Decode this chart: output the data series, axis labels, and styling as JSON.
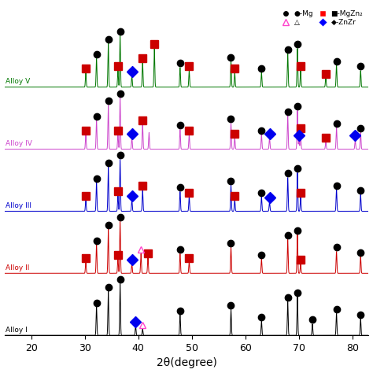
{
  "xlabel": "2θ(degree)",
  "xlim": [
    15,
    83
  ],
  "background_color": "#ffffff",
  "alloy_labels": [
    "Alloy I",
    "Alloy II",
    "Alloy III",
    "Alloy IV",
    "Alloy V"
  ],
  "alloy_colors": [
    "#000000",
    "#cc0000",
    "#0000cc",
    "#cc44cc",
    "#007700"
  ],
  "alloy_offsets": [
    0,
    120,
    240,
    360,
    480
  ],
  "peaks": {
    "alloy_I": {
      "Mg": [
        32.2,
        34.4,
        36.6,
        47.8,
        57.3,
        63.0,
        67.9,
        69.7,
        72.5,
        77.0,
        81.5
      ],
      "MgZn": [],
      "ZnZr": [
        39.5
      ],
      "MgCu": [
        40.8
      ]
    },
    "alloy_II": {
      "Mg": [
        32.2,
        34.4,
        36.6,
        47.8,
        57.3,
        63.0,
        67.9,
        69.7,
        77.0,
        81.5
      ],
      "MgZn": [
        30.2,
        36.2,
        41.8,
        49.5,
        70.3
      ],
      "ZnZr": [
        38.8
      ],
      "MgCu": [
        40.5
      ]
    },
    "alloy_III": {
      "Mg": [
        32.2,
        34.4,
        36.6,
        47.8,
        57.3,
        63.0,
        67.9,
        69.7,
        77.0,
        81.5
      ],
      "MgZn": [
        30.2,
        36.2,
        40.8,
        49.5,
        58.0,
        70.3
      ],
      "ZnZr": [
        38.8,
        64.5
      ],
      "MgCu": []
    },
    "alloy_IV": {
      "Mg": [
        32.2,
        34.4,
        36.6,
        47.8,
        57.3,
        63.0,
        67.9,
        69.7,
        77.0,
        81.5
      ],
      "MgZn": [
        30.2,
        36.2,
        40.8,
        49.5,
        58.0,
        70.3,
        75.0
      ],
      "ZnZr": [
        38.8,
        64.5,
        70.0,
        80.5
      ],
      "MgCu": []
    },
    "alloy_V": {
      "Mg": [
        32.2,
        34.4,
        36.6,
        47.8,
        57.3,
        63.0,
        67.9,
        69.7,
        77.0,
        81.5
      ],
      "MgZn": [
        30.2,
        36.2,
        40.8,
        43.0,
        49.5,
        58.0,
        70.3,
        75.0
      ],
      "ZnZr": [
        38.8
      ],
      "MgCu": []
    }
  },
  "xrd_patterns": {
    "alloy_I": {
      "peaks_pos": [
        32.2,
        34.4,
        36.6,
        39.5,
        40.8,
        47.8,
        57.3,
        63.0,
        67.9,
        69.7,
        72.5,
        77.0,
        81.5
      ],
      "peaks_h": [
        55,
        85,
        100,
        18,
        12,
        40,
        50,
        28,
        65,
        75,
        22,
        42,
        32
      ]
    },
    "alloy_II": {
      "peaks_pos": [
        30.2,
        32.2,
        34.4,
        36.2,
        36.6,
        38.8,
        40.5,
        41.8,
        47.8,
        49.5,
        57.3,
        63.0,
        67.9,
        69.7,
        70.3,
        77.0,
        81.5
      ],
      "peaks_h": [
        22,
        55,
        85,
        28,
        100,
        18,
        38,
        30,
        38,
        22,
        50,
        28,
        65,
        75,
        18,
        42,
        32
      ]
    },
    "alloy_III": {
      "peaks_pos": [
        30.2,
        32.2,
        34.4,
        36.2,
        36.6,
        38.8,
        40.8,
        47.8,
        49.5,
        57.3,
        58.0,
        63.0,
        64.5,
        67.9,
        69.7,
        70.3,
        77.0,
        81.5
      ],
      "peaks_h": [
        22,
        55,
        85,
        30,
        100,
        22,
        42,
        38,
        28,
        50,
        22,
        28,
        18,
        65,
        75,
        28,
        42,
        32
      ]
    },
    "alloy_IV": {
      "peaks_pos": [
        30.2,
        32.2,
        34.4,
        36.2,
        36.6,
        38.8,
        40.8,
        42.0,
        47.8,
        49.5,
        57.3,
        58.0,
        63.0,
        64.5,
        67.9,
        69.7,
        70.0,
        70.3,
        75.0,
        77.0,
        80.5,
        81.5
      ],
      "peaks_h": [
        28,
        55,
        85,
        28,
        100,
        22,
        48,
        32,
        38,
        28,
        50,
        22,
        28,
        22,
        65,
        75,
        18,
        32,
        14,
        42,
        18,
        32
      ]
    },
    "alloy_V": {
      "peaks_pos": [
        30.2,
        32.2,
        34.4,
        36.2,
        36.6,
        38.8,
        40.8,
        43.0,
        47.8,
        49.5,
        57.3,
        58.0,
        63.0,
        67.9,
        69.7,
        70.3,
        75.0,
        77.0,
        81.5
      ],
      "peaks_h": [
        28,
        55,
        85,
        32,
        100,
        22,
        48,
        75,
        38,
        32,
        50,
        28,
        28,
        65,
        75,
        32,
        18,
        42,
        32
      ]
    }
  },
  "marker_colors": {
    "Mg": "#000000",
    "MgZn": "#cc0000",
    "ZnZr": "#0000ee",
    "MgCu": "#ff44cc"
  },
  "marker_styles": {
    "Mg": "o",
    "MgZn": "s",
    "ZnZr": "D",
    "MgCu": "^"
  }
}
